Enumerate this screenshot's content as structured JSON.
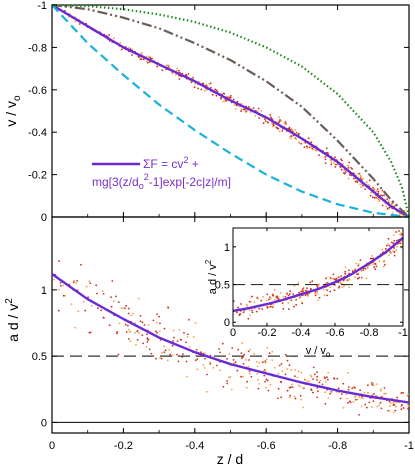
{
  "chart_data": [
    {
      "id": "top",
      "type": "line",
      "xlim": [
        0,
        -1
      ],
      "ylim": [
        0,
        -1
      ],
      "xticks": [
        0,
        -0.2,
        -0.4,
        -0.6,
        -0.8,
        -1
      ],
      "yticks": [
        0,
        -0.2,
        -0.4,
        -0.6,
        -0.8,
        -1
      ],
      "ytick_labels": [
        "0",
        "-0.2",
        "-0.4",
        "-0.6",
        "-0.8",
        "-1"
      ],
      "ylabel": "v / v",
      "ylabel_sub": "o",
      "legend": {
        "line1": "ΣF = cv",
        "line1_sup": "2",
        "line1_end": " +",
        "line2_a": "mg[3(z/d",
        "line2_sub": "o",
        "line2_sup": "2",
        "line2_b": "-1]exp[-2c|z|/m]",
        "color": "#7a2fc9"
      },
      "series": [
        {
          "style": "solid",
          "color": "#6a2ad6",
          "x": [
            0,
            -0.1,
            -0.2,
            -0.3,
            -0.4,
            -0.5,
            -0.6,
            -0.7,
            -0.8,
            -0.9,
            -0.95,
            -1.0
          ],
          "y": [
            -1.0,
            -0.9,
            -0.8,
            -0.72,
            -0.64,
            -0.55,
            -0.47,
            -0.37,
            -0.26,
            -0.12,
            -0.05,
            0.0
          ]
        },
        {
          "style": "dashdot",
          "color": "#6b5c55",
          "x": [
            0,
            -0.1,
            -0.2,
            -0.3,
            -0.4,
            -0.5,
            -0.6,
            -0.7,
            -0.8,
            -0.9,
            -0.95,
            -1.0
          ],
          "y": [
            -1.0,
            -0.98,
            -0.94,
            -0.89,
            -0.82,
            -0.74,
            -0.64,
            -0.52,
            -0.36,
            -0.18,
            -0.08,
            0.0
          ]
        },
        {
          "style": "dotted",
          "color": "#1f8a1f",
          "x": [
            0,
            -0.1,
            -0.2,
            -0.3,
            -0.4,
            -0.5,
            -0.6,
            -0.7,
            -0.8,
            -0.9,
            -0.95,
            -0.98,
            -1.0
          ],
          "y": [
            -1.0,
            -0.995,
            -0.98,
            -0.955,
            -0.92,
            -0.87,
            -0.8,
            -0.71,
            -0.58,
            -0.4,
            -0.26,
            -0.14,
            0.0
          ]
        },
        {
          "style": "dashed",
          "color": "#19b2d9",
          "x": [
            0,
            -0.1,
            -0.2,
            -0.3,
            -0.4,
            -0.5,
            -0.6,
            -0.7,
            -0.8,
            -0.9,
            -1.0
          ],
          "y": [
            -1.0,
            -0.82,
            -0.67,
            -0.53,
            -0.41,
            -0.3,
            -0.2,
            -0.12,
            -0.06,
            -0.02,
            0.0
          ]
        }
      ],
      "scatter": {
        "around_series": 0,
        "spread": 0.05,
        "count": 520
      }
    },
    {
      "id": "bottom",
      "type": "line",
      "xlim": [
        0,
        -1
      ],
      "ylim": [
        -0.08,
        1.55
      ],
      "xticks": [
        0,
        -0.2,
        -0.4,
        -0.6,
        -0.8,
        -1
      ],
      "xtick_labels": [
        "0",
        "-0.2",
        "-0.4",
        "-0.6",
        "-0.8",
        "-1"
      ],
      "yticks": [
        0,
        0.5,
        1
      ],
      "ytick_labels": [
        "0",
        "0.5",
        "1"
      ],
      "xlabel": "z / d",
      "ylabel": "a d / v",
      "ylabel_sup": "2",
      "hline_dashed": 0.5,
      "hline_solid": 0,
      "series": [
        {
          "style": "solid",
          "color": "#6a2ad6",
          "x": [
            0,
            -0.1,
            -0.2,
            -0.3,
            -0.4,
            -0.5,
            -0.6,
            -0.7,
            -0.8,
            -0.9,
            -1.0
          ],
          "y": [
            1.12,
            0.93,
            0.78,
            0.64,
            0.53,
            0.44,
            0.37,
            0.3,
            0.24,
            0.19,
            0.15
          ]
        }
      ],
      "scatter": {
        "around_series": 0,
        "spread": 0.35,
        "count": 420
      }
    },
    {
      "id": "inset",
      "type": "line",
      "xlim": [
        0,
        -1
      ],
      "ylim": [
        -0.05,
        1.25
      ],
      "xticks": [
        0,
        -0.2,
        -0.4,
        -0.6,
        -0.8,
        -1
      ],
      "xtick_labels": [
        "0",
        "-0.2",
        "-0.4",
        "-0.6",
        "-0.8",
        "-1"
      ],
      "yticks": [
        0,
        0.5,
        1
      ],
      "ytick_labels": [
        "0",
        "0.5",
        "1"
      ],
      "xlabel": "v / v",
      "xlabel_sub": "o",
      "ylabel": "a d / v",
      "ylabel_sup": "2",
      "hline_dashed": 0.5,
      "series": [
        {
          "style": "solid",
          "color": "#6a2ad6",
          "x": [
            0,
            -0.1,
            -0.2,
            -0.3,
            -0.4,
            -0.5,
            -0.6,
            -0.7,
            -0.8,
            -0.9,
            -1.0
          ],
          "y": [
            0.15,
            0.19,
            0.24,
            0.3,
            0.37,
            0.44,
            0.53,
            0.64,
            0.78,
            0.93,
            1.12
          ]
        }
      ],
      "scatter": {
        "around_series": 0,
        "spread": 0.2,
        "count": 300
      }
    }
  ],
  "colors": {
    "scatter_dark": "#d0301e",
    "scatter_light": "#f4a24a"
  }
}
